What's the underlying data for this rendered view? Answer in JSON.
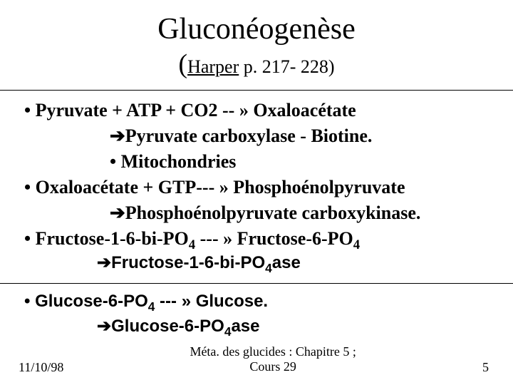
{
  "title": "Gluconéogenèse",
  "subtitle": {
    "ref": "Harper",
    "pages": " p. 217- 228)"
  },
  "lines": {
    "a1": "•  Pyruvate + ATP + CO2 -- » Oxaloacétate",
    "a2": "Pyruvate carboxylase - Biotine.",
    "a3": "•  Mitochondries",
    "b1": "•  Oxaloacétate + GTP--- » Phosphoénolpyruvate",
    "b2": "Phosphoénolpyruvate carboxykinase.",
    "c1_pre": "•  Fructose-1-6-bi-PO",
    "c1_post": " --- » Fructose-6-PO",
    "c2_pre": "Fructose-1-6-bi-PO",
    "c2_post": "ase",
    "d1_pre": "•  Glucose-6-PO",
    "d1_post": " --- » Glucose.",
    "d2_pre": "Glucose-6-PO",
    "d2_post": "ase"
  },
  "sub4": "4",
  "arrow_glyph": "➔",
  "footer": {
    "date": "11/10/98",
    "center1": "Méta. des glucides : Chapitre 5 ;",
    "center2": "Cours 29",
    "page": "5"
  },
  "colors": {
    "text": "#000000",
    "bg": "#ffffff"
  }
}
